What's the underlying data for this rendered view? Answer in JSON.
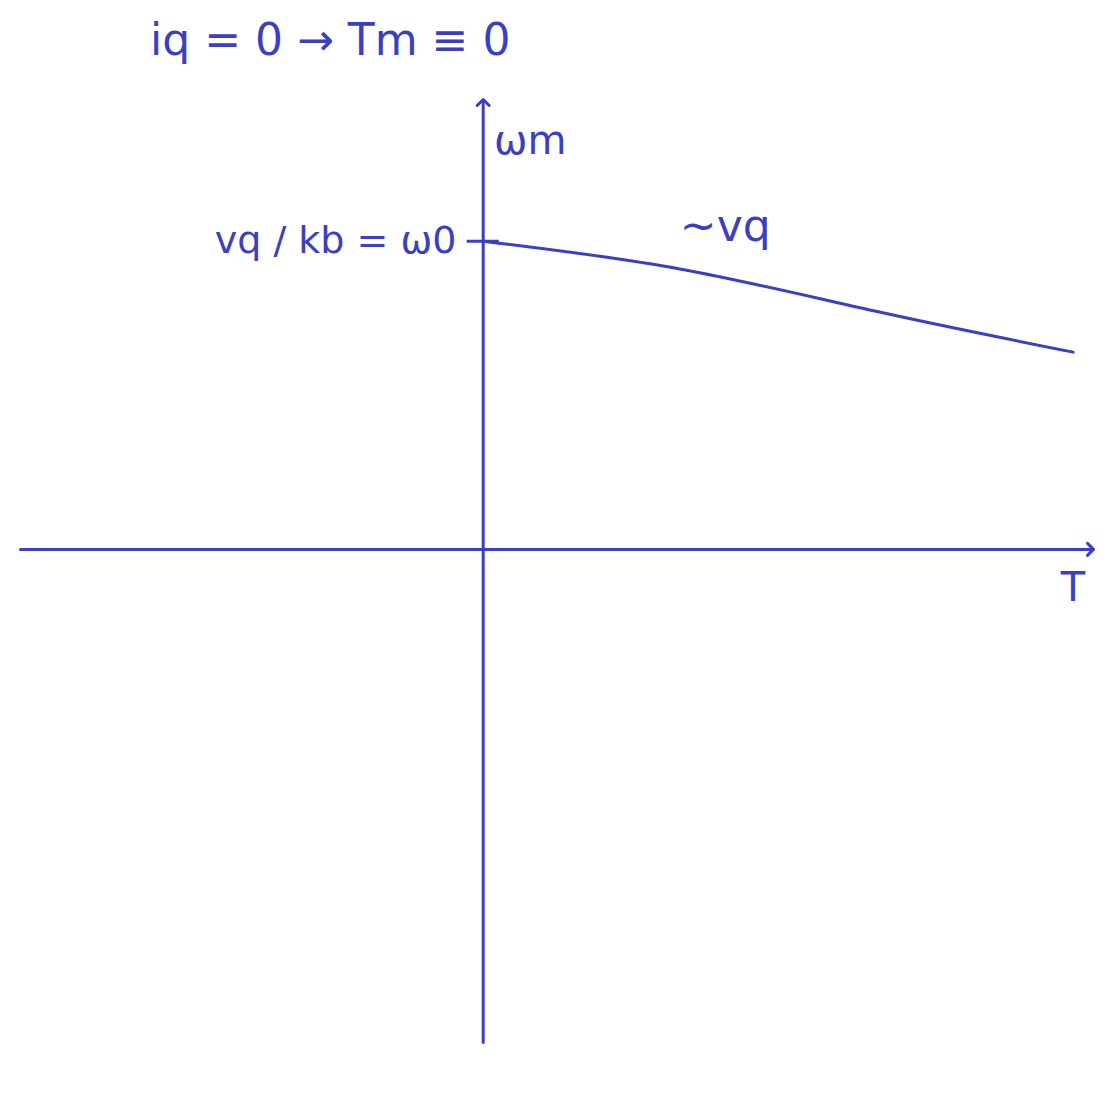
{
  "chart_data": {
    "type": "line",
    "title": "iq = 0 → Tm ≡ 0",
    "x_label": "T",
    "y_label": "ωm",
    "xlim": [
      -1.6,
      2.1
    ],
    "ylim": [
      -1.6,
      1.45
    ],
    "xticks": [],
    "yticks": [
      {
        "value": 1,
        "label": "vq / kb = ω0"
      }
    ],
    "grid": false,
    "series": [
      {
        "name": "~vq",
        "color": "#3b3fc0",
        "x": [
          0,
          0.68,
          1.37,
          2.04
        ],
        "values": [
          1.0,
          0.91,
          0.77,
          0.64
        ]
      }
    ]
  }
}
